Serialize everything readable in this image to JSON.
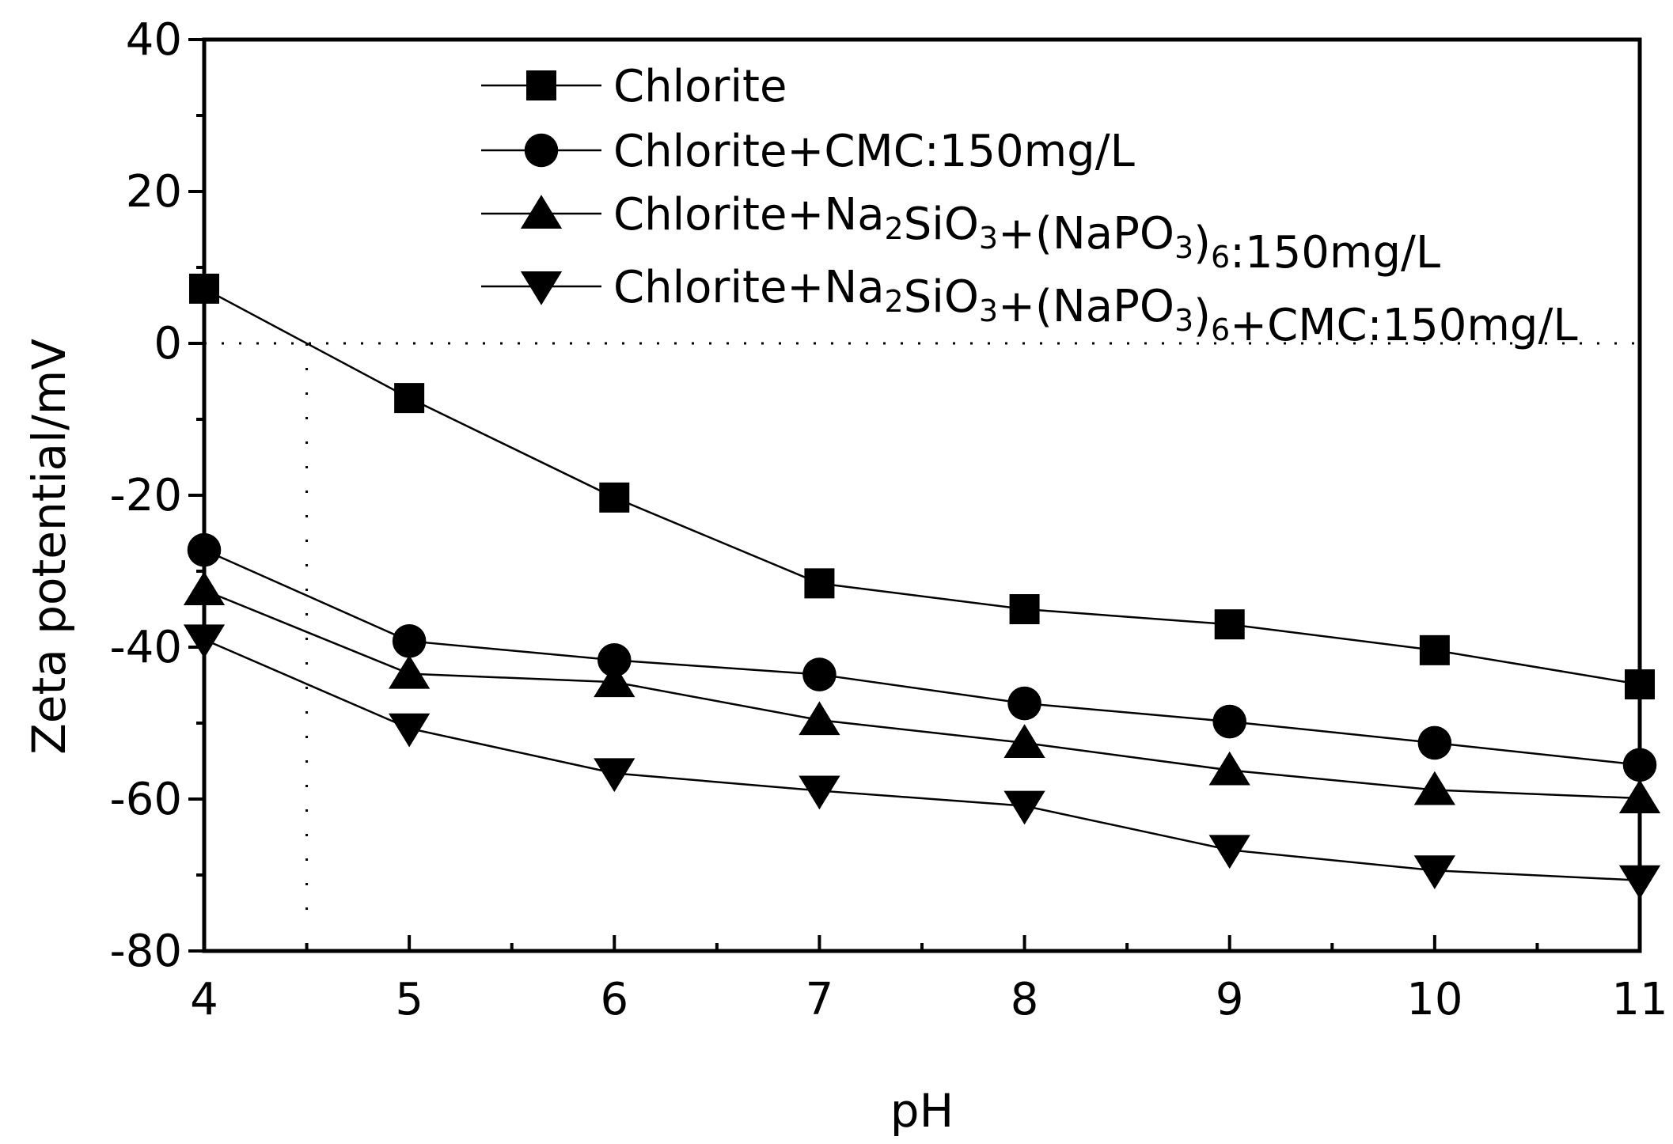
{
  "chart_data": {
    "type": "line",
    "title": "",
    "xlabel": "pH",
    "ylabel": "Zeta potential/mV",
    "xlim": [
      4,
      11
    ],
    "ylim": [
      -80,
      40
    ],
    "x_ticks": [
      4,
      5,
      6,
      7,
      8,
      9,
      10,
      11
    ],
    "x_tick_labels": [
      "4",
      "5",
      "6",
      "7",
      "8",
      "9",
      "10",
      "11"
    ],
    "y_ticks": [
      -80,
      -60,
      -40,
      -20,
      0,
      20,
      40
    ],
    "y_tick_labels": [
      "-80",
      "-60",
      "-40",
      "-20",
      "0",
      "20",
      "40"
    ],
    "zero_line": true,
    "isoelectric_guide_x": 4.5,
    "legend_position": "top-right",
    "x": [
      4,
      5,
      6,
      7,
      8,
      9,
      10,
      11
    ],
    "series": [
      {
        "name": "Chlorite",
        "label_parts": [
          [
            "Chlorite",
            ""
          ]
        ],
        "marker": "square",
        "values": [
          7.2,
          -7.2,
          -20.3,
          -31.6,
          -35.0,
          -37.0,
          -40.4,
          -44.9
        ]
      },
      {
        "name": "Chlorite+CMC:150mg/L",
        "label_parts": [
          [
            "Chlorite+CMC:150mg/L",
            ""
          ]
        ],
        "marker": "circle",
        "values": [
          -27.2,
          -39.2,
          -41.7,
          -43.6,
          -47.4,
          -49.8,
          -52.6,
          -55.5
        ]
      },
      {
        "name": "Chlorite+Na2SiO3+(NaPO3)6:150mg/L",
        "label_parts": [
          [
            "Chlorite+Na",
            ""
          ],
          [
            "2",
            "sub"
          ],
          [
            "SiO",
            ""
          ],
          [
            "3",
            "sub"
          ],
          [
            "+(NaPO",
            ""
          ],
          [
            "3",
            "sub"
          ],
          [
            ")",
            ""
          ],
          [
            "6",
            "sub"
          ],
          [
            ":150mg/L",
            ""
          ]
        ],
        "marker": "triangle-up",
        "values": [
          -32.5,
          -43.5,
          -44.6,
          -49.6,
          -52.6,
          -56.2,
          -58.8,
          -59.9
        ]
      },
      {
        "name": "Chlorite+Na2SiO3+(NaPO3)6+CMC:150mg/L",
        "label_parts": [
          [
            "Chlorite+Na",
            ""
          ],
          [
            "2",
            "sub"
          ],
          [
            "SiO",
            ""
          ],
          [
            "3",
            "sub"
          ],
          [
            "+(NaPO",
            ""
          ],
          [
            "3",
            "sub"
          ],
          [
            ")",
            ""
          ],
          [
            "6",
            "sub"
          ],
          [
            "+CMC:150mg/L",
            ""
          ]
        ],
        "marker": "triangle-down",
        "values": [
          -39.0,
          -50.7,
          -56.6,
          -58.9,
          -60.9,
          -66.7,
          -69.4,
          -70.7
        ]
      }
    ]
  }
}
